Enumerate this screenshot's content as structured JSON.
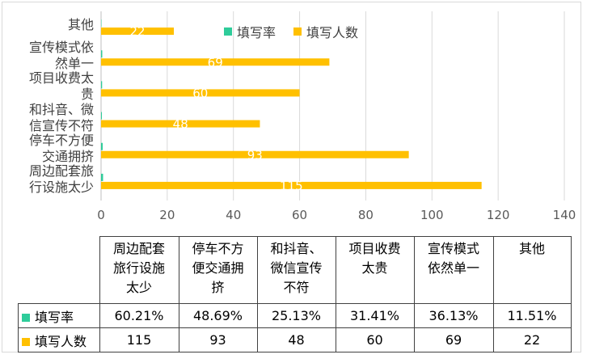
{
  "chart_data": {
    "type": "bar",
    "orientation": "horizontal",
    "categories": [
      "周边配套旅行设施太少",
      "停车不方便交通拥挤",
      "和抖音、微信宣传不符",
      "项目收费太贵",
      "宣传模式依然单一",
      "其他"
    ],
    "category_labels": [
      "周边配套旅\n行设施太少",
      "停车不方便\n交通拥挤",
      "和抖音、微\n信宣传不符",
      "项目收费太\n贵",
      "宣传模式依\n然单一",
      "其他"
    ],
    "series": [
      {
        "name": "填写率",
        "values": [
          60.21,
          48.69,
          25.13,
          31.41,
          36.13,
          11.51
        ],
        "display": [
          "60.21%",
          "48.69%",
          "25.13%",
          "31.41%",
          "36.13%",
          "11.51%"
        ],
        "color": "#2ecc9a"
      },
      {
        "name": "填写人数",
        "values": [
          115,
          93,
          48,
          60,
          69,
          22
        ],
        "color": "#ffc000"
      }
    ],
    "xlim": [
      0,
      140
    ],
    "xticks": [
      0,
      20,
      40,
      60,
      80,
      100,
      120,
      140
    ],
    "grid": true,
    "legend": "top-right",
    "data_table": {
      "headers": [
        "周边配套\n旅行设施\n太少",
        "停车不方\n便交通拥\n挤",
        "和抖音、\n微信宣传\n不符",
        "项目收费\n太贵",
        "宣传模式\n依然单一",
        "其他"
      ]
    }
  }
}
